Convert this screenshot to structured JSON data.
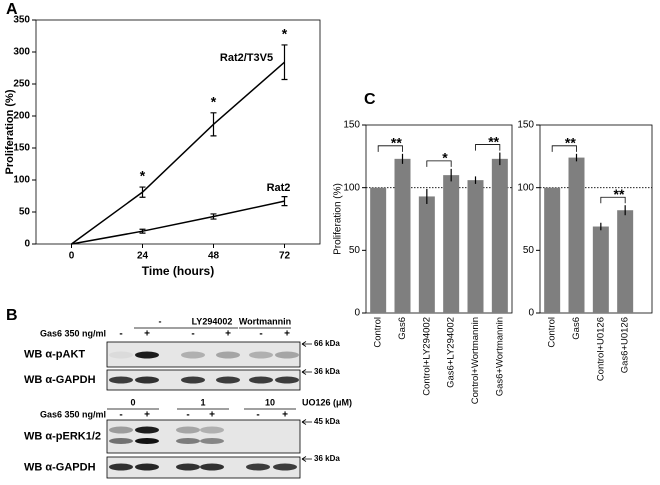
{
  "panel_labels": [
    "A",
    "B",
    "C"
  ],
  "chart_data": [
    {
      "type": "line",
      "xlabel": "Time (hours)",
      "ylabel": "Proliferation (%)",
      "x": [
        0,
        24,
        48,
        72
      ],
      "xlim": [
        -12,
        84
      ],
      "xticks": [
        0,
        24,
        48,
        72
      ],
      "ylim": [
        0,
        350
      ],
      "yticks": [
        0,
        50,
        100,
        150,
        200,
        250,
        300,
        350
      ],
      "series": [
        {
          "name": "Rat2/T3V5",
          "color": "#000000",
          "values": [
            0,
            81,
            187,
            284
          ],
          "errors": [
            0,
            8,
            18,
            27
          ]
        },
        {
          "name": "Rat2",
          "color": "#000000",
          "values": [
            0,
            20,
            43,
            67
          ],
          "errors": [
            0,
            3,
            4,
            7
          ]
        }
      ],
      "annotations": [
        {
          "text": "*",
          "x": 24
        },
        {
          "text": "*",
          "x": 48
        },
        {
          "text": "*",
          "x": 72
        }
      ]
    },
    {
      "type": "bar",
      "ylabel": "Proliferation (%)",
      "color": "#7f7f7f",
      "categories": [
        "Control",
        "Gas6",
        "Control+LY294002",
        "Gas6+LY294002",
        "Control+Wortmannin",
        "Gas6+Wortmannin"
      ],
      "values": [
        100,
        123,
        93,
        110,
        106,
        123
      ],
      "errors": [
        0,
        4,
        6,
        5,
        3,
        5
      ],
      "ylim": [
        0,
        150
      ],
      "yticks": [
        0,
        50,
        100,
        150
      ],
      "reference_line": 100,
      "annotations": [
        {
          "text": "**",
          "between": [
            "Control",
            "Gas6"
          ]
        },
        {
          "text": "*",
          "between": [
            "Control+LY294002",
            "Gas6+LY294002"
          ]
        },
        {
          "text": "**",
          "between": [
            "Control+Wortmannin",
            "Gas6+Wortmannin"
          ]
        }
      ]
    },
    {
      "type": "bar",
      "color": "#7f7f7f",
      "categories": [
        "Control",
        "Gas6",
        "Control+U0126",
        "Gas6+U0126"
      ],
      "values": [
        100,
        124,
        69,
        82
      ],
      "errors": [
        0,
        3,
        3,
        4
      ],
      "ylim": [
        0,
        150
      ],
      "yticks": [
        0,
        50,
        100,
        150
      ],
      "reference_line": 100,
      "annotations": [
        {
          "text": "**",
          "between": [
            "Control",
            "Gas6"
          ]
        },
        {
          "text": "**",
          "between": [
            "Control+U0126",
            "Gas6+U0126"
          ]
        }
      ]
    }
  ],
  "blot": {
    "top": {
      "treatment": "Gas6 350 ng/ml",
      "groups": [
        "-",
        "LY294002",
        "Wortmannin"
      ],
      "lanes": [
        "-",
        "+",
        "-",
        "+",
        "-",
        "+"
      ],
      "rows": [
        {
          "label": "WB  α-pAKT",
          "marker": "66 kDa"
        },
        {
          "label": "WB α-GAPDH",
          "marker": "36 kDa"
        }
      ]
    },
    "bottom": {
      "treatment": "Gas6 350 ng/ml",
      "groups": [
        "0",
        "1",
        "10"
      ],
      "unit": "UO126 (μM)",
      "lanes": [
        "-",
        "+",
        "-",
        "+",
        "-",
        "+"
      ],
      "rows": [
        {
          "label": "WB α-pERK1/2",
          "marker": "45 kDa"
        },
        {
          "label": "WB α-GAPDH",
          "marker": "36 kDa"
        }
      ]
    }
  }
}
